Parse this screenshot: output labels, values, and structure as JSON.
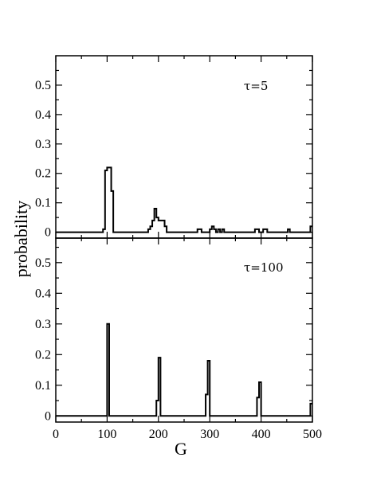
{
  "chart_data": [
    {
      "type": "line",
      "step": true,
      "annotation": "τ=5",
      "legend": "none",
      "grid": false,
      "xlim": [
        0,
        500
      ],
      "ylim": [
        -0.02,
        0.6
      ],
      "yticks": [
        0,
        0.1,
        0.2,
        0.3,
        0.4,
        0.5
      ],
      "yticklabels": [
        "0",
        "0.1",
        "0.2",
        "0.3",
        "0.4",
        "0.5"
      ],
      "points": [
        [
          0,
          0
        ],
        [
          92,
          0
        ],
        [
          92,
          0.01
        ],
        [
          96,
          0.01
        ],
        [
          96,
          0.21
        ],
        [
          100,
          0.21
        ],
        [
          100,
          0.22
        ],
        [
          108,
          0.22
        ],
        [
          108,
          0.14
        ],
        [
          112,
          0.14
        ],
        [
          112,
          0
        ],
        [
          180,
          0
        ],
        [
          180,
          0.01
        ],
        [
          184,
          0.01
        ],
        [
          184,
          0.02
        ],
        [
          188,
          0.02
        ],
        [
          188,
          0.04
        ],
        [
          192,
          0.04
        ],
        [
          192,
          0.08
        ],
        [
          196,
          0.08
        ],
        [
          196,
          0.05
        ],
        [
          200,
          0.05
        ],
        [
          200,
          0.04
        ],
        [
          212,
          0.04
        ],
        [
          212,
          0.02
        ],
        [
          216,
          0.02
        ],
        [
          216,
          0
        ],
        [
          276,
          0
        ],
        [
          276,
          0.01
        ],
        [
          284,
          0.01
        ],
        [
          284,
          0
        ],
        [
          300,
          0
        ],
        [
          300,
          0.01
        ],
        [
          304,
          0.01
        ],
        [
          304,
          0.02
        ],
        [
          308,
          0.02
        ],
        [
          308,
          0.01
        ],
        [
          312,
          0.01
        ],
        [
          312,
          0
        ],
        [
          316,
          0
        ],
        [
          316,
          0.01
        ],
        [
          320,
          0.01
        ],
        [
          320,
          0
        ],
        [
          324,
          0
        ],
        [
          324,
          0.01
        ],
        [
          328,
          0.01
        ],
        [
          328,
          0
        ],
        [
          388,
          0
        ],
        [
          388,
          0.01
        ],
        [
          396,
          0.01
        ],
        [
          396,
          0
        ],
        [
          404,
          0
        ],
        [
          404,
          0.01
        ],
        [
          412,
          0.01
        ],
        [
          412,
          0
        ],
        [
          452,
          0
        ],
        [
          452,
          0.01
        ],
        [
          456,
          0.01
        ],
        [
          456,
          0
        ],
        [
          496,
          0
        ],
        [
          496,
          0.02
        ],
        [
          500,
          0.02
        ]
      ]
    },
    {
      "type": "line",
      "step": true,
      "annotation": "τ=100",
      "legend": "none",
      "grid": false,
      "xlim": [
        0,
        500
      ],
      "ylim": [
        -0.02,
        0.58
      ],
      "yticks": [
        0,
        0.1,
        0.2,
        0.3,
        0.4,
        0.5
      ],
      "yticklabels": [
        "0",
        "0.1",
        "0.2",
        "0.3",
        "0.4",
        "0.5"
      ],
      "xticks": [
        0,
        100,
        200,
        300,
        400,
        500
      ],
      "xticklabels": [
        "0",
        "100",
        "200",
        "300",
        "400",
        "500"
      ],
      "xlabel": "G",
      "points": [
        [
          0,
          0
        ],
        [
          100,
          0
        ],
        [
          100,
          0.3
        ],
        [
          104,
          0.3
        ],
        [
          104,
          0
        ],
        [
          196,
          0
        ],
        [
          196,
          0.05
        ],
        [
          200,
          0.05
        ],
        [
          200,
          0.19
        ],
        [
          204,
          0.19
        ],
        [
          204,
          0
        ],
        [
          292,
          0
        ],
        [
          292,
          0.07
        ],
        [
          296,
          0.07
        ],
        [
          296,
          0.18
        ],
        [
          300,
          0.18
        ],
        [
          300,
          0
        ],
        [
          392,
          0
        ],
        [
          392,
          0.06
        ],
        [
          396,
          0.06
        ],
        [
          396,
          0.11
        ],
        [
          400,
          0.11
        ],
        [
          400,
          0
        ],
        [
          496,
          0
        ],
        [
          496,
          0.04
        ],
        [
          500,
          0.04
        ]
      ]
    }
  ],
  "ylabel": "probability"
}
